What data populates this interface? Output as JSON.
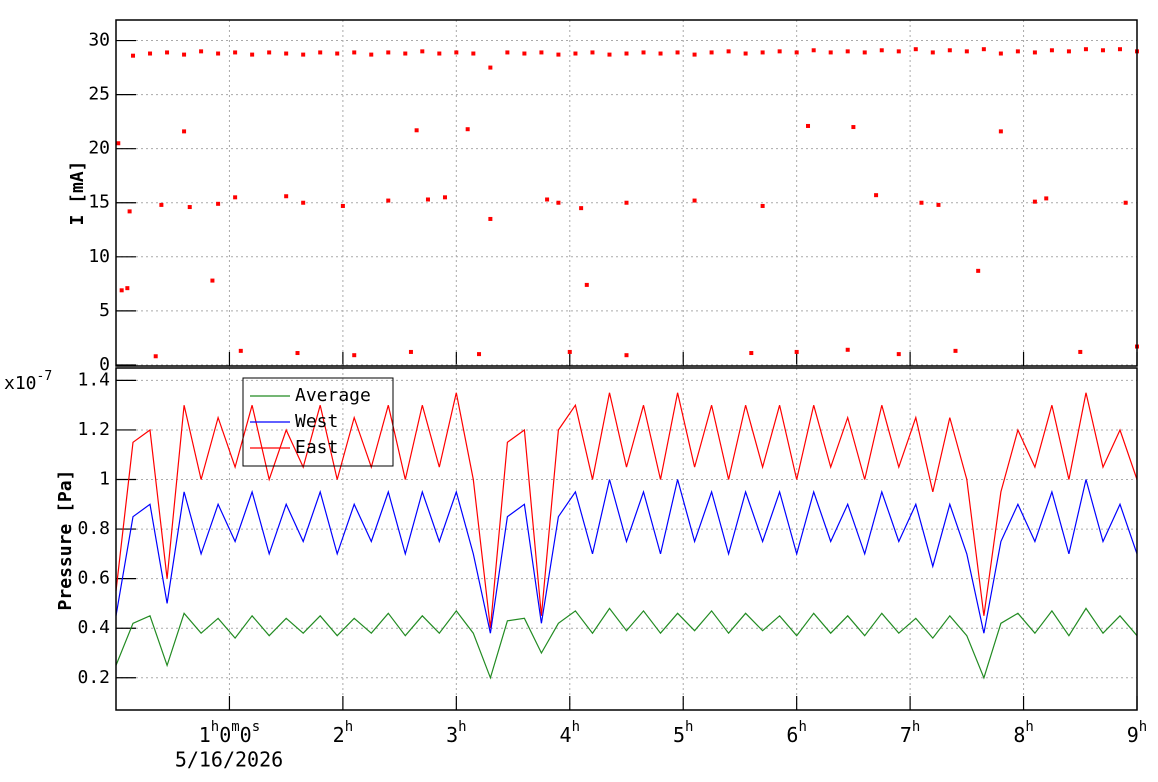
{
  "chart_data": [
    {
      "type": "scatter",
      "ylabel": "I [mA]",
      "xlim": [
        0,
        9
      ],
      "ylim": [
        -0.1,
        31.9
      ],
      "yticks": [
        0,
        5,
        10,
        15,
        20,
        25,
        30
      ],
      "grid": true,
      "series": [
        {
          "color": "#ff0000",
          "x": [
            0.15,
            0.3,
            0.45,
            0.6,
            0.75,
            0.9,
            1.05,
            1.2,
            1.35,
            1.5,
            1.65,
            1.8,
            1.95,
            2.1,
            2.25,
            2.4,
            2.55,
            2.7,
            2.85,
            3.0,
            3.15,
            3.3,
            3.45,
            3.6,
            3.75,
            3.9,
            4.05,
            4.2,
            4.35,
            4.5,
            4.65,
            4.8,
            4.95,
            5.1,
            5.25,
            5.4,
            5.55,
            5.7,
            5.85,
            6.0,
            6.15,
            6.3,
            6.45,
            6.6,
            6.75,
            6.9,
            7.05,
            7.2,
            7.35,
            7.5,
            7.65,
            7.8,
            7.95,
            8.1,
            8.25,
            8.4,
            8.55,
            8.7,
            8.85,
            9.0
          ],
          "values": [
            28.6,
            28.8,
            28.9,
            28.7,
            29.0,
            28.8,
            28.9,
            28.7,
            28.9,
            28.8,
            28.7,
            28.9,
            28.8,
            28.9,
            28.7,
            28.9,
            28.8,
            29.0,
            28.8,
            28.9,
            28.8,
            27.5,
            28.9,
            28.8,
            28.9,
            28.7,
            28.8,
            28.9,
            28.7,
            28.8,
            28.9,
            28.8,
            28.9,
            28.7,
            28.9,
            29.0,
            28.8,
            28.9,
            29.0,
            28.9,
            29.1,
            28.9,
            29.0,
            28.9,
            29.1,
            29.0,
            29.2,
            28.9,
            29.1,
            29.0,
            29.2,
            28.8,
            29.0,
            28.9,
            29.1,
            29.0,
            29.2,
            29.1,
            29.2,
            29.0
          ]
        },
        {
          "color": "#ff0000",
          "x": [
            0.02,
            0.05,
            0.1,
            0.12,
            0.4,
            0.6,
            0.65,
            0.85,
            0.9,
            1.05,
            1.5,
            1.65,
            2.0,
            2.4,
            2.65,
            2.75,
            2.9,
            3.1,
            3.3,
            3.8,
            3.9,
            4.1,
            4.15,
            4.5,
            5.1,
            5.7,
            6.1,
            6.5,
            6.7,
            7.1,
            7.25,
            7.6,
            7.8,
            8.1,
            8.2,
            8.9,
            0.35,
            1.1,
            1.6,
            2.1,
            2.6,
            3.2,
            4.0,
            4.5,
            5.6,
            6.0,
            6.45,
            6.9,
            7.4,
            8.5,
            9.0
          ],
          "values": [
            20.5,
            6.9,
            7.1,
            14.2,
            14.8,
            21.6,
            14.6,
            7.8,
            14.9,
            15.5,
            15.6,
            15.0,
            14.7,
            15.2,
            21.7,
            15.3,
            15.5,
            21.8,
            13.5,
            15.3,
            15.0,
            14.5,
            7.4,
            15.0,
            15.2,
            14.7,
            22.1,
            22.0,
            15.7,
            15.0,
            14.8,
            8.7,
            21.6,
            15.1,
            15.4,
            15.0,
            0.8,
            1.3,
            1.1,
            0.9,
            1.2,
            1.0,
            1.2,
            0.9,
            1.1,
            1.2,
            1.4,
            1.0,
            1.3,
            1.2,
            1.7
          ]
        }
      ]
    },
    {
      "type": "line",
      "ylabel": "Pressure [Pa]",
      "y_multiplier": "x10-7",
      "x_offset_label": "5/16/2026",
      "xlim": [
        0,
        9
      ],
      "ylim": [
        0.07,
        1.45
      ],
      "yticks": [
        0.2,
        0.4,
        0.6,
        0.8,
        1,
        1.2,
        1.4
      ],
      "xticks": [
        {
          "value": 1,
          "label": "1h0m0s"
        },
        {
          "value": 2,
          "label": "2h"
        },
        {
          "value": 3,
          "label": "3h"
        },
        {
          "value": 4,
          "label": "4h"
        },
        {
          "value": 5,
          "label": "5h"
        },
        {
          "value": 6,
          "label": "6h"
        },
        {
          "value": 7,
          "label": "7h"
        },
        {
          "value": 8,
          "label": "8h"
        },
        {
          "value": 9,
          "label": "9h"
        }
      ],
      "grid": true,
      "x": [
        0,
        0.15,
        0.3,
        0.45,
        0.6,
        0.75,
        0.9,
        1.05,
        1.2,
        1.35,
        1.5,
        1.65,
        1.8,
        1.95,
        2.1,
        2.25,
        2.4,
        2.55,
        2.7,
        2.85,
        3.0,
        3.15,
        3.3,
        3.45,
        3.6,
        3.75,
        3.9,
        4.05,
        4.2,
        4.35,
        4.5,
        4.65,
        4.8,
        4.95,
        5.1,
        5.25,
        5.4,
        5.55,
        5.7,
        5.85,
        6.0,
        6.15,
        6.3,
        6.45,
        6.6,
        6.75,
        6.9,
        7.05,
        7.2,
        7.35,
        7.5,
        7.65,
        7.8,
        7.95,
        8.1,
        8.25,
        8.4,
        8.55,
        8.7,
        8.85,
        9.0
      ],
      "series": [
        {
          "name": "Average",
          "color": "#228b22",
          "values": [
            0.25,
            0.42,
            0.45,
            0.25,
            0.46,
            0.38,
            0.44,
            0.36,
            0.45,
            0.37,
            0.44,
            0.38,
            0.45,
            0.37,
            0.44,
            0.38,
            0.46,
            0.37,
            0.45,
            0.38,
            0.47,
            0.38,
            0.2,
            0.43,
            0.44,
            0.3,
            0.42,
            0.47,
            0.38,
            0.48,
            0.39,
            0.47,
            0.38,
            0.46,
            0.39,
            0.47,
            0.38,
            0.46,
            0.39,
            0.45,
            0.37,
            0.46,
            0.38,
            0.45,
            0.37,
            0.46,
            0.38,
            0.44,
            0.36,
            0.45,
            0.37,
            0.2,
            0.42,
            0.46,
            0.38,
            0.47,
            0.37,
            0.48,
            0.38,
            0.45,
            0.37
          ]
        },
        {
          "name": "West",
          "color": "#0000ff",
          "values": [
            0.45,
            0.85,
            0.9,
            0.5,
            0.95,
            0.7,
            0.9,
            0.75,
            0.95,
            0.7,
            0.9,
            0.75,
            0.95,
            0.7,
            0.9,
            0.75,
            0.95,
            0.7,
            0.95,
            0.75,
            0.95,
            0.7,
            0.38,
            0.85,
            0.9,
            0.42,
            0.85,
            0.95,
            0.7,
            1.0,
            0.75,
            0.95,
            0.7,
            1.0,
            0.75,
            0.95,
            0.7,
            0.95,
            0.75,
            0.95,
            0.7,
            0.95,
            0.75,
            0.9,
            0.7,
            0.95,
            0.75,
            0.9,
            0.65,
            0.9,
            0.7,
            0.38,
            0.75,
            0.9,
            0.75,
            0.95,
            0.7,
            1.0,
            0.75,
            0.9,
            0.7
          ]
        },
        {
          "name": "East",
          "color": "#ff0000",
          "values": [
            0.55,
            1.15,
            1.2,
            0.6,
            1.3,
            1.0,
            1.25,
            1.05,
            1.3,
            1.0,
            1.2,
            1.05,
            1.3,
            1.0,
            1.25,
            1.05,
            1.3,
            1.0,
            1.3,
            1.05,
            1.35,
            1.0,
            0.4,
            1.15,
            1.2,
            0.45,
            1.2,
            1.3,
            1.0,
            1.35,
            1.05,
            1.3,
            1.0,
            1.35,
            1.05,
            1.3,
            1.0,
            1.3,
            1.05,
            1.3,
            1.0,
            1.3,
            1.05,
            1.25,
            1.0,
            1.3,
            1.05,
            1.25,
            0.95,
            1.25,
            1.0,
            0.45,
            0.95,
            1.2,
            1.05,
            1.3,
            1.0,
            1.35,
            1.05,
            1.2,
            1.0
          ]
        }
      ]
    }
  ]
}
